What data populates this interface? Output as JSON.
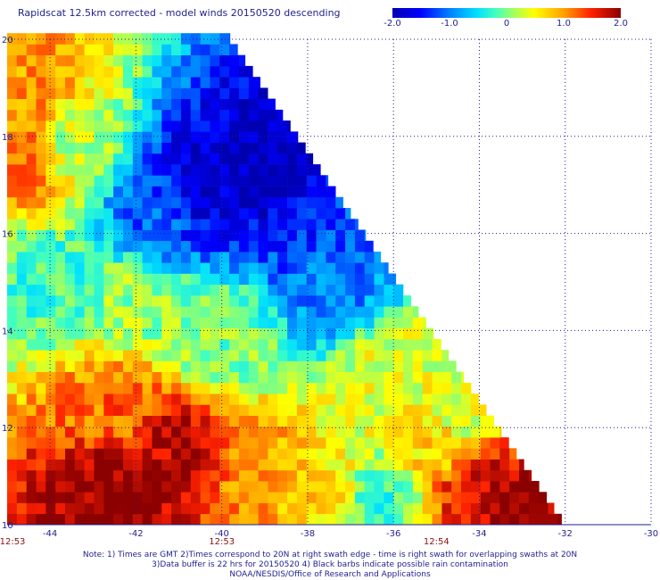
{
  "title": "Rapidscat 12.5km corrected - model winds 20150520 descending",
  "colorbar": {
    "ticks": [
      {
        "value": -2.0,
        "label": "-2.0"
      },
      {
        "value": -1.0,
        "label": "-1.0"
      },
      {
        "value": 0,
        "label": "0"
      },
      {
        "value": 1.0,
        "label": "1.0"
      },
      {
        "value": 2.0,
        "label": "2.0"
      }
    ],
    "range": [
      -2.0,
      2.0
    ]
  },
  "notes": [
    "Note: 1) Times are GMT 2)Times correspond to 20N at right swath edge - time is right swath for overlapping swaths at 20N",
    "3)Data buffer is 22 hrs for 20150520 4) Black barbs indicate possible rain contamination",
    "NOAA/NESDIS/Office of Research and Applications"
  ],
  "chart_data": {
    "type": "heatmap",
    "title": "Rapidscat 12.5km corrected - model winds 20150520 descending",
    "xlabel": "",
    "ylabel": "",
    "xlim": [
      -45,
      -30
    ],
    "ylim": [
      10,
      20
    ],
    "x_ticks": [
      -44,
      -42,
      -40,
      -38,
      -36,
      -34,
      -32,
      -30
    ],
    "x_tick_labels": [
      "-44",
      "-42",
      "-40",
      "-38",
      "-36",
      "-34",
      "-32",
      "-30"
    ],
    "y_ticks": [
      10,
      12,
      14,
      16,
      18,
      20
    ],
    "y_tick_labels": [
      "10",
      "12",
      "14",
      "16",
      "18",
      "20"
    ],
    "grid": true,
    "colorbar_range": [
      -2.0,
      2.0
    ],
    "swath_edge": [
      [
        -39.8,
        20
      ],
      [
        -32,
        10
      ]
    ],
    "time_labels": [
      {
        "lon": -45,
        "text": "12:53"
      },
      {
        "lon": -40,
        "text": "12:53"
      },
      {
        "lon": -35,
        "text": "12:54"
      }
    ],
    "regions": [
      {
        "lon": -40.5,
        "lat": 17.0,
        "value": -1.8
      },
      {
        "lon": -39.0,
        "lat": 17.3,
        "value": -2.0
      },
      {
        "lon": -41.5,
        "lat": 16.5,
        "value": -1.2
      },
      {
        "lon": -38.0,
        "lat": 16.0,
        "value": -1.3
      },
      {
        "lon": -37.5,
        "lat": 15.0,
        "value": -1.0
      },
      {
        "lon": -43.5,
        "lat": 17.8,
        "value": 0.2
      },
      {
        "lon": -44.5,
        "lat": 17.5,
        "value": 1.2
      },
      {
        "lon": -44.5,
        "lat": 19.0,
        "value": 1.0
      },
      {
        "lon": -44.0,
        "lat": 15.0,
        "value": -0.2
      },
      {
        "lon": -42.0,
        "lat": 14.5,
        "value": 0.1
      },
      {
        "lon": -40.0,
        "lat": 13.8,
        "value": 0.0
      },
      {
        "lon": -36.0,
        "lat": 13.0,
        "value": 0.4
      },
      {
        "lon": -34.5,
        "lat": 12.3,
        "value": 0.3
      },
      {
        "lon": -42.5,
        "lat": 12.5,
        "value": 1.2
      },
      {
        "lon": -41.0,
        "lat": 11.5,
        "value": 1.8
      },
      {
        "lon": -42.5,
        "lat": 10.6,
        "value": 2.0
      },
      {
        "lon": -39.0,
        "lat": 11.0,
        "value": 1.0
      },
      {
        "lon": -37.5,
        "lat": 10.7,
        "value": 0.7
      },
      {
        "lon": -36.5,
        "lat": 10.5,
        "value": -0.3
      },
      {
        "lon": -34.0,
        "lat": 10.8,
        "value": 1.7
      },
      {
        "lon": -33.0,
        "lat": 10.3,
        "value": 2.0
      },
      {
        "lon": -35.0,
        "lat": 11.7,
        "value": 0.7
      }
    ]
  }
}
